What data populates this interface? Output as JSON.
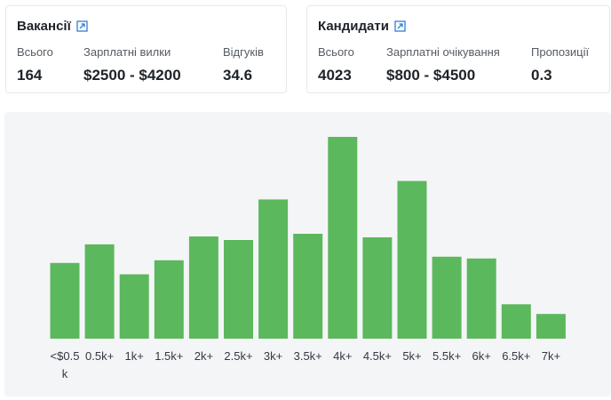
{
  "vacancies": {
    "title": "Вакансії",
    "stats": [
      {
        "label": "Всього",
        "value": "164"
      },
      {
        "label": "Зарплатні вилки",
        "value": "$2500 - $4200"
      },
      {
        "label": "Відгуків",
        "value": "34.6"
      }
    ]
  },
  "candidates": {
    "title": "Кандидати",
    "stats": [
      {
        "label": "Всього",
        "value": "4023"
      },
      {
        "label": "Зарплатні очікування",
        "value": "$800 - $4500"
      },
      {
        "label": "Пропозиції",
        "value": "0.3"
      }
    ]
  },
  "icons": {
    "external": "external-link-icon"
  },
  "colors": {
    "bar": "#5cb85c",
    "link": "#2f7ed8",
    "panel": "#f4f5f7"
  },
  "chart_data": {
    "type": "bar",
    "title": "",
    "xlabel": "",
    "ylabel": "",
    "grid": false,
    "categories": [
      "<$0.5k",
      "0.5k+",
      "1k+",
      "1.5k+",
      "2k+",
      "2.5k+",
      "3k+",
      "3.5k+",
      "4k+",
      "4.5k+",
      "5k+",
      "5.5k+",
      "6k+",
      "6.5k+",
      "7k+"
    ],
    "values": [
      86,
      107,
      73,
      89,
      116,
      112,
      158,
      119,
      229,
      115,
      179,
      93,
      91,
      39,
      28
    ],
    "ylim": [
      0,
      229
    ]
  }
}
